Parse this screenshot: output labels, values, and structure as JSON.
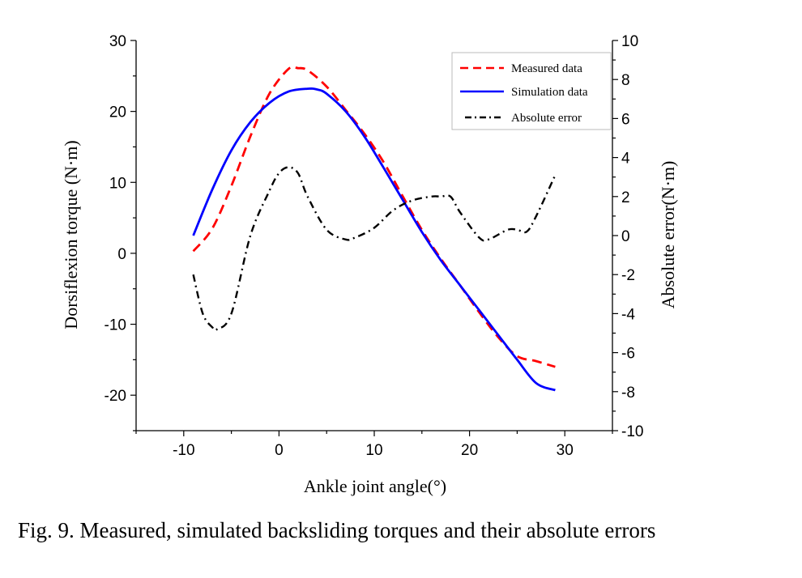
{
  "caption": "Fig. 9. Measured, simulated backsliding torques and their absolute errors",
  "chart_data": {
    "type": "line",
    "xlabel": "Ankle joint angle(°)",
    "ylabel": "Dorsiflexion torque (N·m)",
    "y2label": "Absolute error(N·m)",
    "xlim": [
      -15,
      35
    ],
    "ylim": [
      -25,
      30
    ],
    "y2lim": [
      -10,
      10
    ],
    "xticks": [
      -10,
      0,
      10,
      20,
      30
    ],
    "yticks": [
      -20,
      -10,
      0,
      10,
      20,
      30
    ],
    "y2ticks": [
      -10,
      -8,
      -6,
      -4,
      -2,
      0,
      2,
      4,
      6,
      8,
      10
    ],
    "legend_position": "top-right",
    "series": [
      {
        "name": "Measured data",
        "axis": "left",
        "color": "#ff0000",
        "style": "dashed",
        "x": [
          -9,
          -7,
          -5,
          -3,
          -1,
          1,
          2,
          3,
          5,
          7,
          9,
          11,
          13,
          15,
          17,
          19,
          21,
          23,
          25,
          27,
          29
        ],
        "y": [
          0.3,
          3.5,
          9.5,
          16.5,
          22.5,
          26.0,
          26.1,
          25.8,
          23.5,
          20.2,
          16.8,
          12.8,
          8.0,
          3.3,
          -0.8,
          -4.5,
          -8.3,
          -11.8,
          -14.5,
          -15.2,
          -16.0
        ]
      },
      {
        "name": "Simulation data",
        "axis": "left",
        "color": "#0000ff",
        "style": "solid",
        "x": [
          -9,
          -7,
          -5,
          -3,
          -1,
          1,
          3,
          4,
          5,
          7,
          9,
          11,
          13,
          15,
          17,
          19,
          21,
          23,
          25,
          27,
          29
        ],
        "y": [
          2.5,
          9.0,
          14.5,
          18.5,
          21.2,
          22.8,
          23.2,
          23.1,
          22.5,
          20.0,
          16.4,
          12.0,
          7.5,
          3.0,
          -1.0,
          -4.5,
          -8.0,
          -11.5,
          -15.0,
          -18.3,
          -19.3
        ]
      },
      {
        "name": "Absolute error",
        "axis": "right",
        "color": "#000000",
        "style": "dashdot",
        "x": [
          -9,
          -8,
          -7,
          -6.5,
          -5,
          -3,
          -1,
          0,
          1,
          2,
          3,
          5,
          7,
          8,
          10,
          12,
          14,
          16,
          17,
          18,
          19,
          21,
          22,
          24,
          25,
          26,
          27,
          29
        ],
        "y": [
          -2.0,
          -4.0,
          -4.7,
          -4.8,
          -4.0,
          0.0,
          2.3,
          3.2,
          3.5,
          3.2,
          2.0,
          0.3,
          -0.2,
          -0.1,
          0.4,
          1.3,
          1.8,
          2.0,
          2.0,
          2.0,
          1.2,
          -0.1,
          -0.2,
          0.3,
          0.3,
          0.2,
          1.0,
          3.1
        ]
      }
    ]
  }
}
